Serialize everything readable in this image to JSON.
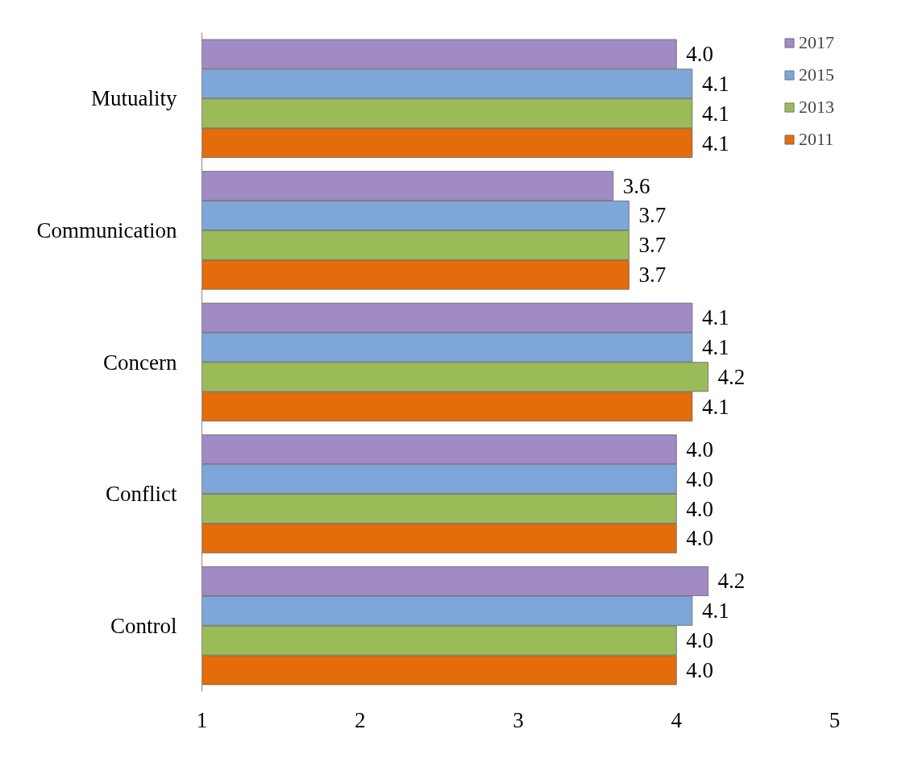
{
  "chart_data": {
    "type": "bar",
    "orientation": "horizontal",
    "categories": [
      "Mutuality",
      "Communication",
      "Concern",
      "Conflict",
      "Control"
    ],
    "series": [
      {
        "name": "2017",
        "color": "#a08bc4",
        "values": [
          4.0,
          3.6,
          4.1,
          4.0,
          4.2
        ],
        "value_labels": [
          "4.0",
          "3.6",
          "4.1",
          "4.0",
          "4.2"
        ]
      },
      {
        "name": "2015",
        "color": "#7ea6d8",
        "values": [
          4.1,
          3.7,
          4.1,
          4.0,
          4.1
        ],
        "value_labels": [
          "4.1",
          "3.7",
          "4.1",
          "4.0",
          "4.1"
        ]
      },
      {
        "name": "2013",
        "color": "#9bbb59",
        "values": [
          4.1,
          3.7,
          4.2,
          4.0,
          4.0
        ],
        "value_labels": [
          "4.1",
          "3.7",
          "4.2",
          "4.0",
          "4.0"
        ]
      },
      {
        "name": "2011",
        "color": "#e46c0a",
        "values": [
          4.1,
          3.7,
          4.1,
          4.0,
          4.0
        ],
        "value_labels": [
          "4.1",
          "3.7",
          "4.1",
          "4.0",
          "4.0"
        ]
      }
    ],
    "xlim": [
      1,
      5
    ],
    "xticks": [
      1,
      2,
      3,
      4,
      5
    ],
    "grid": false,
    "legend": "top right"
  }
}
